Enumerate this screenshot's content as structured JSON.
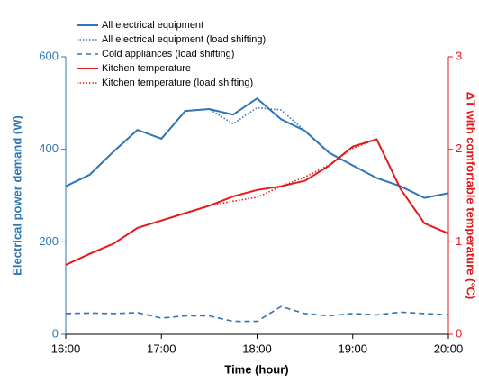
{
  "chart_data": {
    "type": "line",
    "xlabel": "Time (hour)",
    "ylabel": "Electrical power demand (W)",
    "y2label": "ΔT with comfortable temperature (°C)",
    "x": [
      16,
      16.25,
      16.5,
      16.75,
      17,
      17.25,
      17.5,
      17.75,
      18,
      18.25,
      18.5,
      18.75,
      19,
      19.25,
      19.5,
      19.75,
      20
    ],
    "xlim": [
      16,
      20
    ],
    "xticks": [
      {
        "value": 16,
        "label": "16:00"
      },
      {
        "value": 17,
        "label": "17:00"
      },
      {
        "value": 18,
        "label": "18:00"
      },
      {
        "value": 19,
        "label": "19:00"
      },
      {
        "value": 20,
        "label": "20:00"
      }
    ],
    "ylim": [
      0,
      600
    ],
    "yticks": [
      0,
      200,
      400,
      600
    ],
    "y2lim": [
      0,
      3
    ],
    "y2ticks": [
      0,
      1,
      2,
      3
    ],
    "y_color": "#2e75b6",
    "y2_color": "#e31a1c",
    "legend": "upper left",
    "series": [
      {
        "name": "All electrical equipment",
        "color": "#2e75b6",
        "dash": "solid",
        "values": [
          320,
          345,
          395,
          442,
          423,
          483,
          487,
          475,
          510,
          465,
          440,
          393,
          365,
          338,
          320,
          295,
          305
        ]
      },
      {
        "name": "All electrical equipment (load shifting)",
        "color": "#2e75b6",
        "dash": "dotted",
        "values": [
          320,
          345,
          395,
          442,
          423,
          483,
          487,
          455,
          490,
          485,
          440,
          393,
          365,
          338,
          320,
          295,
          305
        ]
      },
      {
        "name": "Cold appliances (load shifting)",
        "color": "#2e75b6",
        "dash": "dashed",
        "values": [
          45,
          46,
          45,
          47,
          35,
          40,
          40,
          28,
          28,
          60,
          45,
          40,
          45,
          42,
          48,
          45,
          42
        ]
      },
      {
        "name": "Kitchen temperature",
        "color": "#e31a1c",
        "dash": "solid",
        "axis": "y2",
        "values": [
          0.75,
          0.87,
          0.98,
          1.15,
          1.23,
          1.31,
          1.39,
          1.49,
          1.56,
          1.6,
          1.66,
          1.82,
          2.03,
          2.11,
          1.57,
          1.2,
          1.09
        ]
      },
      {
        "name": "Kitchen temperature (load shifting)",
        "color": "#e31a1c",
        "dash": "dotted",
        "axis": "y2",
        "values": [
          0.75,
          0.87,
          0.98,
          1.15,
          1.23,
          1.31,
          1.39,
          1.44,
          1.48,
          1.6,
          1.7,
          1.83,
          2.01,
          2.11,
          1.57,
          1.2,
          1.09
        ]
      }
    ]
  }
}
